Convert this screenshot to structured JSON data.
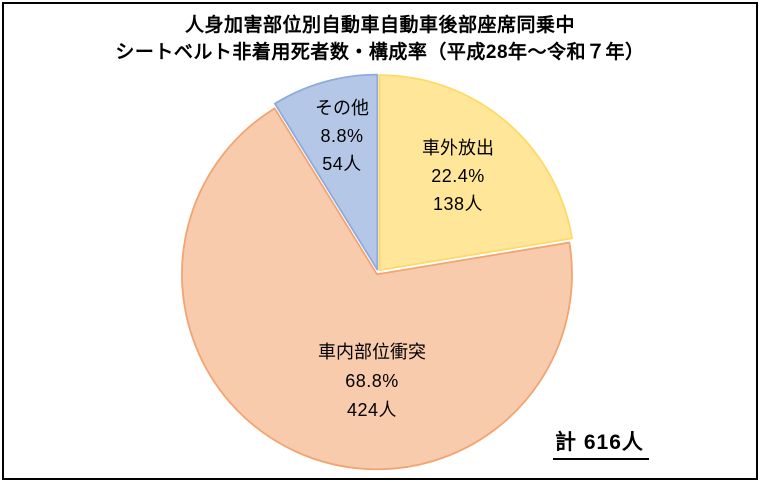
{
  "title": {
    "line1": "人身加害部位別自動車自動車後部座席同乗中",
    "line2": "シートベルト非着用死者数・構成率（平成28年～令和７年）"
  },
  "chart_data": {
    "type": "pie",
    "title": "人身加害部位別自動車自動車後部座席同乗中 シートベルト非着用死者数・構成率（平成28年～令和７年）",
    "start_angle_deg": 0,
    "direction": "clockwise",
    "legend": "none",
    "labels_on_slices": true,
    "background": "#ffffff",
    "slices": [
      {
        "id": "ejection",
        "label": "車外放出",
        "percent": 22.4,
        "percent_text": "22.4%",
        "count": 138,
        "count_text": "138人",
        "fill": "#FFE699",
        "stroke": "#FFD966"
      },
      {
        "id": "interior-collision",
        "label": "車内部位衝突",
        "percent": 68.8,
        "percent_text": "68.8%",
        "count": 424,
        "count_text": "424人",
        "fill": "#F8CBAD",
        "stroke": "#F2A471"
      },
      {
        "id": "other",
        "label": "その他",
        "percent": 8.8,
        "percent_text": "8.8%",
        "count": 54,
        "count_text": "54人",
        "fill": "#B4C7E7",
        "stroke": "#8FAADC"
      }
    ],
    "total": 616,
    "total_text": "計 616人"
  }
}
